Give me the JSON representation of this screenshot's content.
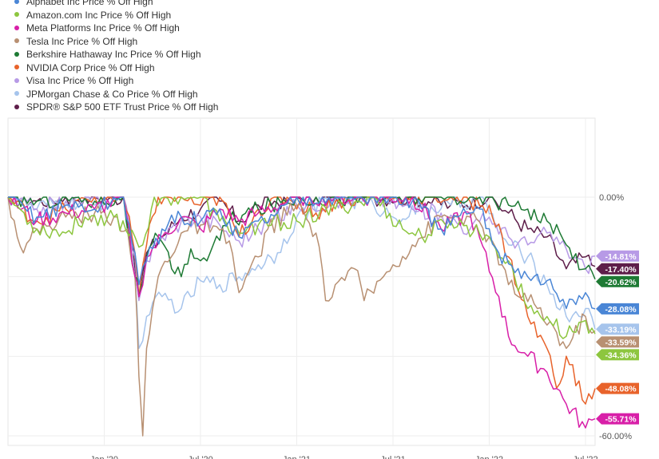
{
  "chart_data": {
    "type": "line",
    "title": "",
    "xlabel": "",
    "ylabel": "",
    "ylim": [
      -60,
      0
    ],
    "y_ticks": [
      {
        "value": 0,
        "label": "0.00%"
      },
      {
        "value": -60,
        "label": "-60.00%"
      }
    ],
    "x_ticks": [
      {
        "t": 0.5,
        "label": "Jan '20"
      },
      {
        "t": 1.0,
        "label": "Jul '20"
      },
      {
        "t": 1.5,
        "label": "Jan '21"
      },
      {
        "t": 2.0,
        "label": "Jul '21"
      },
      {
        "t": 2.5,
        "label": "Jan '22"
      },
      {
        "t": 3.0,
        "label": "Jul '22"
      }
    ],
    "grid": true,
    "legend_position": "top-left",
    "series": [
      {
        "name": "Alphabet Inc Price % Off High",
        "color": "#4a86d6",
        "end_value": -28.08,
        "end_label": "-28.08%",
        "points": [
          [
            0,
            0
          ],
          [
            0.15,
            -5
          ],
          [
            0.3,
            -2
          ],
          [
            0.45,
            -3
          ],
          [
            0.6,
            0
          ],
          [
            0.66,
            -14
          ],
          [
            0.68,
            -22
          ],
          [
            0.72,
            -16
          ],
          [
            0.8,
            -8
          ],
          [
            0.9,
            -5
          ],
          [
            1.0,
            -6
          ],
          [
            1.1,
            -3
          ],
          [
            1.2,
            -10
          ],
          [
            1.3,
            -6
          ],
          [
            1.4,
            -4
          ],
          [
            1.5,
            0
          ],
          [
            1.7,
            0
          ],
          [
            1.9,
            0
          ],
          [
            2.1,
            -1
          ],
          [
            2.25,
            -8
          ],
          [
            2.4,
            -4
          ],
          [
            2.45,
            -3
          ],
          [
            2.55,
            -14
          ],
          [
            2.7,
            -20
          ],
          [
            2.8,
            -21
          ],
          [
            2.9,
            -28
          ],
          [
            3.0,
            -24
          ],
          [
            3.05,
            -28.08
          ]
        ]
      },
      {
        "name": "Amazon.com Inc Price % Off High",
        "color": "#8dc63f",
        "end_value": -34.36,
        "end_label": "-34.36%",
        "points": [
          [
            0,
            0
          ],
          [
            0.15,
            -8
          ],
          [
            0.3,
            -9
          ],
          [
            0.4,
            -5
          ],
          [
            0.55,
            -5
          ],
          [
            0.66,
            -10
          ],
          [
            0.7,
            -12
          ],
          [
            0.76,
            0
          ],
          [
            0.9,
            0
          ],
          [
            1.0,
            0
          ],
          [
            1.1,
            -6
          ],
          [
            1.2,
            -9
          ],
          [
            1.3,
            -7
          ],
          [
            1.5,
            -6
          ],
          [
            1.7,
            -3
          ],
          [
            1.9,
            0
          ],
          [
            2.05,
            -8
          ],
          [
            2.15,
            -10
          ],
          [
            2.3,
            -6
          ],
          [
            2.5,
            -10
          ],
          [
            2.6,
            -16
          ],
          [
            2.7,
            -28
          ],
          [
            2.8,
            -30
          ],
          [
            2.9,
            -35
          ],
          [
            3.0,
            -31
          ],
          [
            3.05,
            -34.36
          ]
        ]
      },
      {
        "name": "Meta Platforms Inc Price % Off High",
        "color": "#d81fa8",
        "end_value": -55.71,
        "end_label": "-55.71%",
        "points": [
          [
            0,
            0
          ],
          [
            0.15,
            -6
          ],
          [
            0.3,
            -4
          ],
          [
            0.45,
            -3
          ],
          [
            0.6,
            0
          ],
          [
            0.66,
            -20
          ],
          [
            0.68,
            -25
          ],
          [
            0.72,
            -15
          ],
          [
            0.8,
            -10
          ],
          [
            0.9,
            -5
          ],
          [
            1.0,
            -8
          ],
          [
            1.1,
            -3
          ],
          [
            1.2,
            -6
          ],
          [
            1.3,
            -4
          ],
          [
            1.5,
            0
          ],
          [
            1.7,
            0
          ],
          [
            1.9,
            0
          ],
          [
            2.1,
            0
          ],
          [
            2.25,
            -8
          ],
          [
            2.4,
            -4
          ],
          [
            2.55,
            -25
          ],
          [
            2.6,
            -35
          ],
          [
            2.7,
            -40
          ],
          [
            2.8,
            -44
          ],
          [
            2.9,
            -52
          ],
          [
            3.0,
            -58
          ],
          [
            3.05,
            -55.71
          ]
        ]
      },
      {
        "name": "Tesla Inc Price % Off High",
        "color": "#b89072",
        "end_value": -33.59,
        "end_label": "-33.59%",
        "points": [
          [
            0,
            0
          ],
          [
            0.08,
            -14
          ],
          [
            0.15,
            -8
          ],
          [
            0.3,
            -5
          ],
          [
            0.45,
            -4
          ],
          [
            0.55,
            -5
          ],
          [
            0.62,
            -8
          ],
          [
            0.66,
            -20
          ],
          [
            0.68,
            -45
          ],
          [
            0.7,
            -60
          ],
          [
            0.72,
            -38
          ],
          [
            0.78,
            -20
          ],
          [
            0.9,
            -9
          ],
          [
            1.0,
            -7
          ],
          [
            1.15,
            -11
          ],
          [
            1.2,
            -24
          ],
          [
            1.3,
            -15
          ],
          [
            1.35,
            -8
          ],
          [
            1.5,
            -2
          ],
          [
            1.6,
            -9
          ],
          [
            1.65,
            -26
          ],
          [
            1.7,
            -22
          ],
          [
            1.8,
            -18
          ],
          [
            1.85,
            -26
          ],
          [
            1.95,
            -20
          ],
          [
            2.0,
            -17
          ],
          [
            2.1,
            -12
          ],
          [
            2.25,
            -5
          ],
          [
            2.4,
            -5
          ],
          [
            2.5,
            -10
          ],
          [
            2.6,
            -22
          ],
          [
            2.75,
            -28
          ],
          [
            2.85,
            -34
          ],
          [
            2.9,
            -38
          ],
          [
            3.0,
            -30
          ],
          [
            3.05,
            -33.59
          ]
        ]
      },
      {
        "name": "Berkshire Hathaway Inc Price % Off High",
        "color": "#1e7a34",
        "end_value": -20.62,
        "end_label": "-20.62%",
        "points": [
          [
            0,
            0
          ],
          [
            0.15,
            -1
          ],
          [
            0.3,
            0
          ],
          [
            0.45,
            -1
          ],
          [
            0.6,
            0
          ],
          [
            0.66,
            -20
          ],
          [
            0.68,
            -25
          ],
          [
            0.72,
            -15
          ],
          [
            0.78,
            -10
          ],
          [
            0.85,
            -18
          ],
          [
            0.9,
            -20
          ],
          [
            0.95,
            -13
          ],
          [
            1.0,
            -16
          ],
          [
            1.05,
            -14
          ],
          [
            1.15,
            -6
          ],
          [
            1.3,
            -3
          ],
          [
            1.5,
            0
          ],
          [
            1.7,
            0
          ],
          [
            1.9,
            0
          ],
          [
            2.1,
            0
          ],
          [
            2.3,
            0
          ],
          [
            2.5,
            0
          ],
          [
            2.6,
            -2
          ],
          [
            2.65,
            -1
          ],
          [
            2.7,
            -3
          ],
          [
            2.8,
            -6
          ],
          [
            2.9,
            -12
          ],
          [
            3.0,
            -18
          ],
          [
            3.05,
            -20.62
          ]
        ]
      },
      {
        "name": "NVIDIA Corp Price % Off High",
        "color": "#e8632b",
        "end_value": -48.08,
        "end_label": "-48.08%",
        "points": [
          [
            0,
            0
          ],
          [
            0.15,
            -6
          ],
          [
            0.3,
            -3
          ],
          [
            0.45,
            0
          ],
          [
            0.6,
            0
          ],
          [
            0.66,
            -14
          ],
          [
            0.68,
            -25
          ],
          [
            0.72,
            -12
          ],
          [
            0.78,
            0
          ],
          [
            0.9,
            0
          ],
          [
            1.0,
            -2
          ],
          [
            1.1,
            0
          ],
          [
            1.2,
            -10
          ],
          [
            1.3,
            -3
          ],
          [
            1.45,
            0
          ],
          [
            1.6,
            -4
          ],
          [
            1.7,
            -1
          ],
          [
            1.9,
            0
          ],
          [
            2.1,
            0
          ],
          [
            2.3,
            0
          ],
          [
            2.5,
            -2
          ],
          [
            2.6,
            -15
          ],
          [
            2.7,
            -30
          ],
          [
            2.8,
            -38
          ],
          [
            2.85,
            -48
          ],
          [
            2.9,
            -40
          ],
          [
            3.0,
            -52
          ],
          [
            3.05,
            -48.08
          ]
        ]
      },
      {
        "name": "Visa Inc Price % Off High",
        "color": "#b79ae6",
        "end_value": -14.81,
        "end_label": "-14.81%",
        "points": [
          [
            0,
            0
          ],
          [
            0.15,
            -3
          ],
          [
            0.3,
            -1
          ],
          [
            0.45,
            0
          ],
          [
            0.6,
            0
          ],
          [
            0.66,
            -15
          ],
          [
            0.68,
            -26
          ],
          [
            0.72,
            -16
          ],
          [
            0.8,
            -10
          ],
          [
            0.9,
            -6
          ],
          [
            1.0,
            -5
          ],
          [
            1.1,
            -7
          ],
          [
            1.2,
            -11
          ],
          [
            1.3,
            -8
          ],
          [
            1.5,
            -2
          ],
          [
            1.7,
            -1
          ],
          [
            1.9,
            0
          ],
          [
            2.1,
            -3
          ],
          [
            2.25,
            -4
          ],
          [
            2.4,
            -8
          ],
          [
            2.5,
            -5
          ],
          [
            2.6,
            -10
          ],
          [
            2.7,
            -12
          ],
          [
            2.8,
            -9
          ],
          [
            2.9,
            -13
          ],
          [
            3.0,
            -18
          ],
          [
            3.05,
            -14.81
          ]
        ]
      },
      {
        "name": "JPMorgan Chase & Co Price % Off High",
        "color": "#a6c4ec",
        "end_value": -33.19,
        "end_label": "-33.19%",
        "points": [
          [
            0,
            0
          ],
          [
            0.15,
            -3
          ],
          [
            0.3,
            -1
          ],
          [
            0.45,
            -2
          ],
          [
            0.6,
            0
          ],
          [
            0.66,
            -20
          ],
          [
            0.68,
            -38
          ],
          [
            0.72,
            -30
          ],
          [
            0.8,
            -25
          ],
          [
            0.9,
            -28
          ],
          [
            1.0,
            -21
          ],
          [
            1.1,
            -22
          ],
          [
            1.2,
            -20
          ],
          [
            1.3,
            -17
          ],
          [
            1.4,
            -14
          ],
          [
            1.5,
            -5
          ],
          [
            1.7,
            0
          ],
          [
            1.9,
            -2
          ],
          [
            2.0,
            -5
          ],
          [
            2.15,
            -3
          ],
          [
            2.3,
            -2
          ],
          [
            2.45,
            0
          ],
          [
            2.6,
            -12
          ],
          [
            2.7,
            -15
          ],
          [
            2.8,
            -22
          ],
          [
            2.9,
            -30
          ],
          [
            3.0,
            -28
          ],
          [
            3.05,
            -33.19
          ]
        ]
      },
      {
        "name": "SPDR® S&P 500 ETF Trust Price % Off High",
        "color": "#5e1e4a",
        "end_value": -17.4,
        "end_label": "-17.40%",
        "points": [
          [
            0,
            0
          ],
          [
            0.15,
            -1
          ],
          [
            0.3,
            0
          ],
          [
            0.45,
            0
          ],
          [
            0.6,
            0
          ],
          [
            0.66,
            -18
          ],
          [
            0.68,
            -25
          ],
          [
            0.72,
            -14
          ],
          [
            0.8,
            -10
          ],
          [
            0.9,
            -5
          ],
          [
            1.0,
            -3
          ],
          [
            1.1,
            -1
          ],
          [
            1.2,
            -6
          ],
          [
            1.3,
            -2
          ],
          [
            1.5,
            0
          ],
          [
            1.7,
            0
          ],
          [
            1.9,
            0
          ],
          [
            2.1,
            0
          ],
          [
            2.3,
            -2
          ],
          [
            2.5,
            0
          ],
          [
            2.6,
            -4
          ],
          [
            2.7,
            -8
          ],
          [
            2.8,
            -10
          ],
          [
            2.9,
            -18
          ],
          [
            3.0,
            -15
          ],
          [
            3.05,
            -17.4
          ]
        ]
      }
    ]
  }
}
